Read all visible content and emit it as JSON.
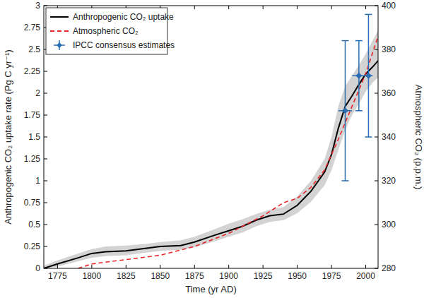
{
  "chart_data": {
    "type": "line",
    "x_label": "Time (yr AD)",
    "y_label": "Anthropogenic CO₂ uptake rate (Pg C yr⁻¹)",
    "y2_label": "Atmospheric CO₂ (p.p.m.)",
    "xlim": [
      1765,
      2009
    ],
    "xticks": [
      1775,
      1800,
      1825,
      1850,
      1875,
      1900,
      1925,
      1950,
      1975,
      2000
    ],
    "ylim": [
      0,
      3
    ],
    "yticks": [
      0,
      0.25,
      0.5,
      0.75,
      1,
      1.25,
      1.5,
      1.75,
      2,
      2.25,
      2.5,
      2.75,
      3
    ],
    "y2lim": [
      280,
      400
    ],
    "y2ticks": [
      280,
      300,
      320,
      340,
      360,
      380,
      400
    ],
    "grid": false,
    "legend": "upper-left",
    "series": [
      {
        "name": "Anthropogenic CO₂ uptake",
        "type": "line",
        "color": "#000000",
        "line_style": "solid",
        "x": [
          1765,
          1775,
          1790,
          1800,
          1810,
          1825,
          1840,
          1850,
          1865,
          1875,
          1890,
          1900,
          1910,
          1920,
          1930,
          1940,
          1950,
          1960,
          1970,
          1975,
          1980,
          1985,
          1990,
          1995,
          2000,
          2005,
          2009
        ],
        "values": [
          0.0,
          0.05,
          0.12,
          0.17,
          0.19,
          0.2,
          0.23,
          0.25,
          0.26,
          0.3,
          0.38,
          0.43,
          0.48,
          0.55,
          0.6,
          0.62,
          0.72,
          0.88,
          1.1,
          1.3,
          1.6,
          1.85,
          1.97,
          2.1,
          2.22,
          2.3,
          2.37
        ],
        "lower": [
          0.0,
          0.02,
          0.08,
          0.12,
          0.14,
          0.15,
          0.18,
          0.2,
          0.21,
          0.24,
          0.31,
          0.36,
          0.41,
          0.48,
          0.53,
          0.55,
          0.63,
          0.76,
          0.95,
          1.12,
          1.35,
          1.58,
          1.75,
          1.88,
          2.02,
          2.12,
          2.18
        ],
        "upper": [
          0.03,
          0.09,
          0.17,
          0.22,
          0.25,
          0.26,
          0.28,
          0.3,
          0.32,
          0.36,
          0.45,
          0.51,
          0.56,
          0.62,
          0.67,
          0.7,
          0.82,
          1.0,
          1.25,
          1.5,
          1.85,
          2.08,
          2.2,
          2.32,
          2.45,
          2.6,
          2.72
        ]
      },
      {
        "name": "Atmospheric CO₂",
        "type": "line",
        "axis": "y2",
        "color": "#e8262a",
        "line_style": "dashed",
        "x": [
          1790,
          1800,
          1825,
          1850,
          1875,
          1900,
          1925,
          1940,
          1950,
          1960,
          1970,
          1980,
          1990,
          2000,
          2009
        ],
        "values": [
          280,
          282,
          284,
          286,
          290,
          296,
          304,
          310,
          312,
          317,
          325,
          339,
          354,
          369,
          386
        ]
      },
      {
        "name": "IPCC consensus estimates",
        "type": "scatter",
        "color": "#2a6db3",
        "marker": "diamond",
        "x": [
          1985,
          1995,
          2002
        ],
        "values": [
          1.8,
          2.2,
          2.2
        ],
        "xerr": [
          5,
          5,
          3
        ],
        "yerr": [
          0.8,
          0.4,
          0.7
        ]
      }
    ]
  }
}
